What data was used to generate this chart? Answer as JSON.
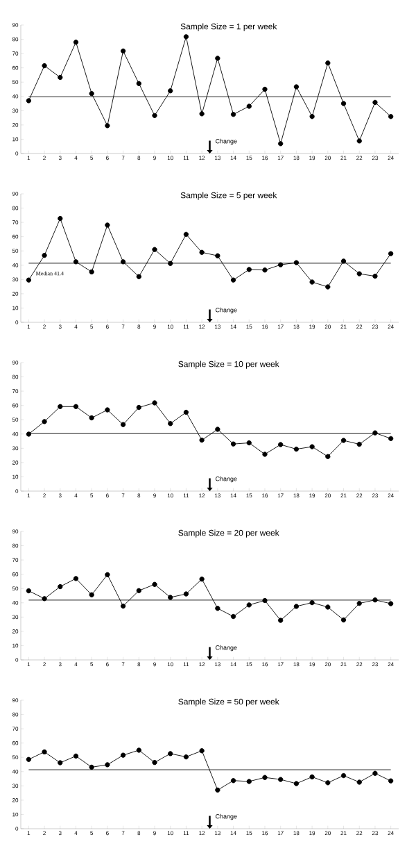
{
  "chart_data": [
    {
      "type": "line",
      "title": "Sample Size = 1 per week",
      "categories": [
        "1",
        "2",
        "3",
        "4",
        "5",
        "6",
        "7",
        "8",
        "9",
        "10",
        "11",
        "12",
        "13",
        "14",
        "15",
        "16",
        "17",
        "18",
        "19",
        "20",
        "21",
        "22",
        "23",
        "24"
      ],
      "values": [
        37,
        61.5,
        53.3,
        78,
        42,
        19.5,
        71.8,
        49,
        26.6,
        43.9,
        81.8,
        27.8,
        66.7,
        27.4,
        33.1,
        45,
        6.9,
        46.7,
        25.9,
        63.4,
        35,
        8.8,
        35.8,
        25.9
      ],
      "color": "#000000",
      "marker": "circle",
      "ylim": [
        0,
        90
      ],
      "yticks": [
        0,
        10,
        20,
        30,
        40,
        50,
        60,
        70,
        80,
        90
      ],
      "ref_lines": [
        {
          "axis": "y",
          "value": 39.7,
          "color": "#000000"
        }
      ],
      "annotations": [
        "Change"
      ]
    },
    {
      "type": "line",
      "title": "Sample Size = 5 per week",
      "categories": [
        "1",
        "2",
        "3",
        "4",
        "5",
        "6",
        "7",
        "8",
        "9",
        "10",
        "11",
        "12",
        "13",
        "14",
        "15",
        "16",
        "17",
        "18",
        "19",
        "20",
        "21",
        "22",
        "23",
        "24"
      ],
      "values": [
        29.6,
        46.9,
        72.7,
        42.4,
        35.3,
        68.1,
        42.4,
        32,
        51,
        41.2,
        61.6,
        49,
        46.6,
        29.6,
        37,
        36.6,
        40.3,
        41.8,
        28.2,
        24.8,
        42.9,
        34,
        32.3,
        48.1
      ],
      "color": "#000000",
      "marker": "circle",
      "ylim": [
        0,
        90
      ],
      "yticks": [
        0,
        10,
        20,
        30,
        40,
        50,
        60,
        70,
        80,
        90
      ],
      "ref_lines": [
        {
          "axis": "y",
          "value": 41.4,
          "label": "Median 41.4",
          "color": "#000000"
        }
      ],
      "annotations": [
        "Change"
      ]
    },
    {
      "type": "line",
      "title": "Sample Size = 10 per week",
      "categories": [
        "1",
        "2",
        "3",
        "4",
        "5",
        "6",
        "7",
        "8",
        "9",
        "10",
        "11",
        "12",
        "13",
        "14",
        "15",
        "16",
        "17",
        "18",
        "19",
        "20",
        "21",
        "22",
        "23",
        "24"
      ],
      "values": [
        39.9,
        48.7,
        59.2,
        59.2,
        51.3,
        56.9,
        46.6,
        58.6,
        61.8,
        47.3,
        55.2,
        35.7,
        43.3,
        33,
        33.8,
        25.8,
        32.6,
        29.4,
        31.1,
        24.2,
        35.5,
        32.8,
        40.8,
        36.8
      ],
      "color": "#000000",
      "marker": "circle",
      "ylim": [
        0,
        90
      ],
      "yticks": [
        0,
        10,
        20,
        30,
        40,
        50,
        60,
        70,
        80,
        90
      ],
      "ref_lines": [
        {
          "axis": "y",
          "value": 40.3,
          "color": "#000000"
        }
      ],
      "annotations": [
        "Change"
      ]
    },
    {
      "type": "line",
      "title": "Sample Size = 20 per week",
      "categories": [
        "1",
        "2",
        "3",
        "4",
        "5",
        "6",
        "7",
        "8",
        "9",
        "10",
        "11",
        "12",
        "13",
        "14",
        "15",
        "16",
        "17",
        "18",
        "19",
        "20",
        "21",
        "22",
        "23",
        "24"
      ],
      "values": [
        48.4,
        42.9,
        51.3,
        57,
        45.6,
        59.7,
        37.7,
        48.5,
        52.9,
        43.8,
        46.2,
        56.6,
        36.1,
        30.4,
        38.5,
        41.6,
        27.7,
        37.5,
        40.1,
        37,
        28,
        39.6,
        42,
        39.4
      ],
      "color": "#000000",
      "marker": "circle",
      "ylim": [
        0,
        90
      ],
      "yticks": [
        0,
        10,
        20,
        30,
        40,
        50,
        60,
        70,
        80,
        90
      ],
      "ref_lines": [
        {
          "axis": "y",
          "value": 41.9,
          "color": "#000000"
        }
      ],
      "annotations": [
        "Change"
      ]
    },
    {
      "type": "line",
      "title": "Sample Size = 50 per week",
      "categories": [
        "1",
        "2",
        "3",
        "4",
        "5",
        "6",
        "7",
        "8",
        "9",
        "10",
        "11",
        "12",
        "13",
        "14",
        "15",
        "16",
        "17",
        "18",
        "19",
        "20",
        "21",
        "22",
        "23",
        "24"
      ],
      "values": [
        48.5,
        53.8,
        46.2,
        50.9,
        43.1,
        44.8,
        51.5,
        55,
        46.4,
        52.6,
        50.3,
        54.6,
        27.1,
        33.7,
        33.1,
        35.9,
        34.5,
        31.6,
        36.3,
        32.2,
        37.2,
        32.6,
        38.8,
        33.5
      ],
      "color": "#000000",
      "marker": "circle",
      "ylim": [
        0,
        90
      ],
      "yticks": [
        0,
        10,
        20,
        30,
        40,
        50,
        60,
        70,
        80,
        90
      ],
      "ref_lines": [
        {
          "axis": "y",
          "value": 41.3,
          "color": "#000000"
        }
      ],
      "annotations": [
        "Change"
      ]
    }
  ]
}
